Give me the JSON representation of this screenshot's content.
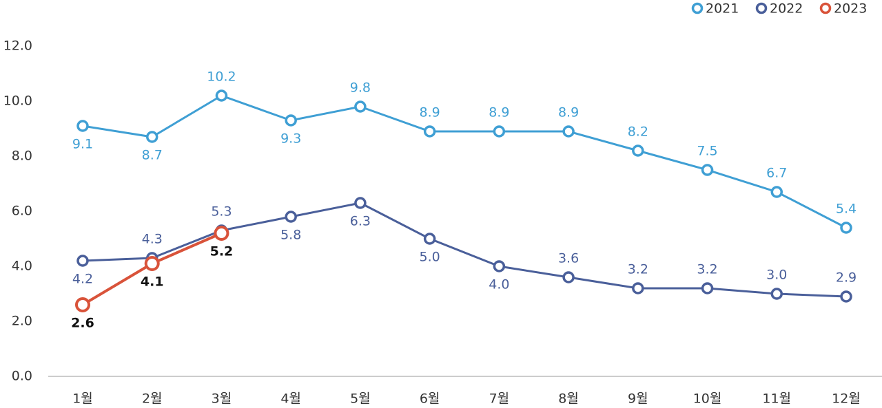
{
  "chart_data": {
    "type": "line",
    "categories": [
      "1월",
      "2월",
      "3월",
      "4월",
      "5월",
      "6월",
      "7월",
      "8월",
      "9월",
      "10월",
      "11월",
      "12월"
    ],
    "series": [
      {
        "name": "2021",
        "color": "#3f9fd4",
        "values": [
          9.1,
          8.7,
          10.2,
          9.3,
          9.8,
          8.9,
          8.9,
          8.9,
          8.2,
          7.5,
          6.7,
          5.4
        ],
        "value_labels": [
          "9.1",
          "8.7",
          "10.2",
          "9.3",
          "9.8",
          "8.9",
          "8.9",
          "8.9",
          "8.2",
          "7.5",
          "6.7",
          "5.4"
        ]
      },
      {
        "name": "2022",
        "color": "#4a5f9a",
        "values": [
          4.2,
          4.3,
          5.3,
          5.8,
          6.3,
          5.0,
          4.0,
          3.6,
          3.2,
          3.2,
          3.0,
          2.9
        ],
        "value_labels": [
          "4.2",
          "4.3",
          "5.3",
          "5.8",
          "6.3",
          "5.0",
          "4.0",
          "3.6",
          "3.2",
          "3.2",
          "3.0",
          "2.9"
        ]
      },
      {
        "name": "2023",
        "color": "#d9533a",
        "values": [
          2.6,
          4.1,
          5.2,
          null,
          null,
          null,
          null,
          null,
          null,
          null,
          null,
          null
        ],
        "value_labels": [
          "2.6",
          "4.1",
          "5.2",
          null,
          null,
          null,
          null,
          null,
          null,
          null,
          null,
          null
        ]
      }
    ],
    "ylim": [
      0,
      12
    ],
    "yticks": [
      {
        "value": 0,
        "label": "0.0"
      },
      {
        "value": 2,
        "label": "2.0"
      },
      {
        "value": 4,
        "label": "4.0"
      },
      {
        "value": 6,
        "label": "6.0"
      },
      {
        "value": 8,
        "label": "8.0"
      },
      {
        "value": 10,
        "label": "10.0"
      },
      {
        "value": 12,
        "label": "12.0"
      }
    ],
    "legend": "top-right"
  }
}
